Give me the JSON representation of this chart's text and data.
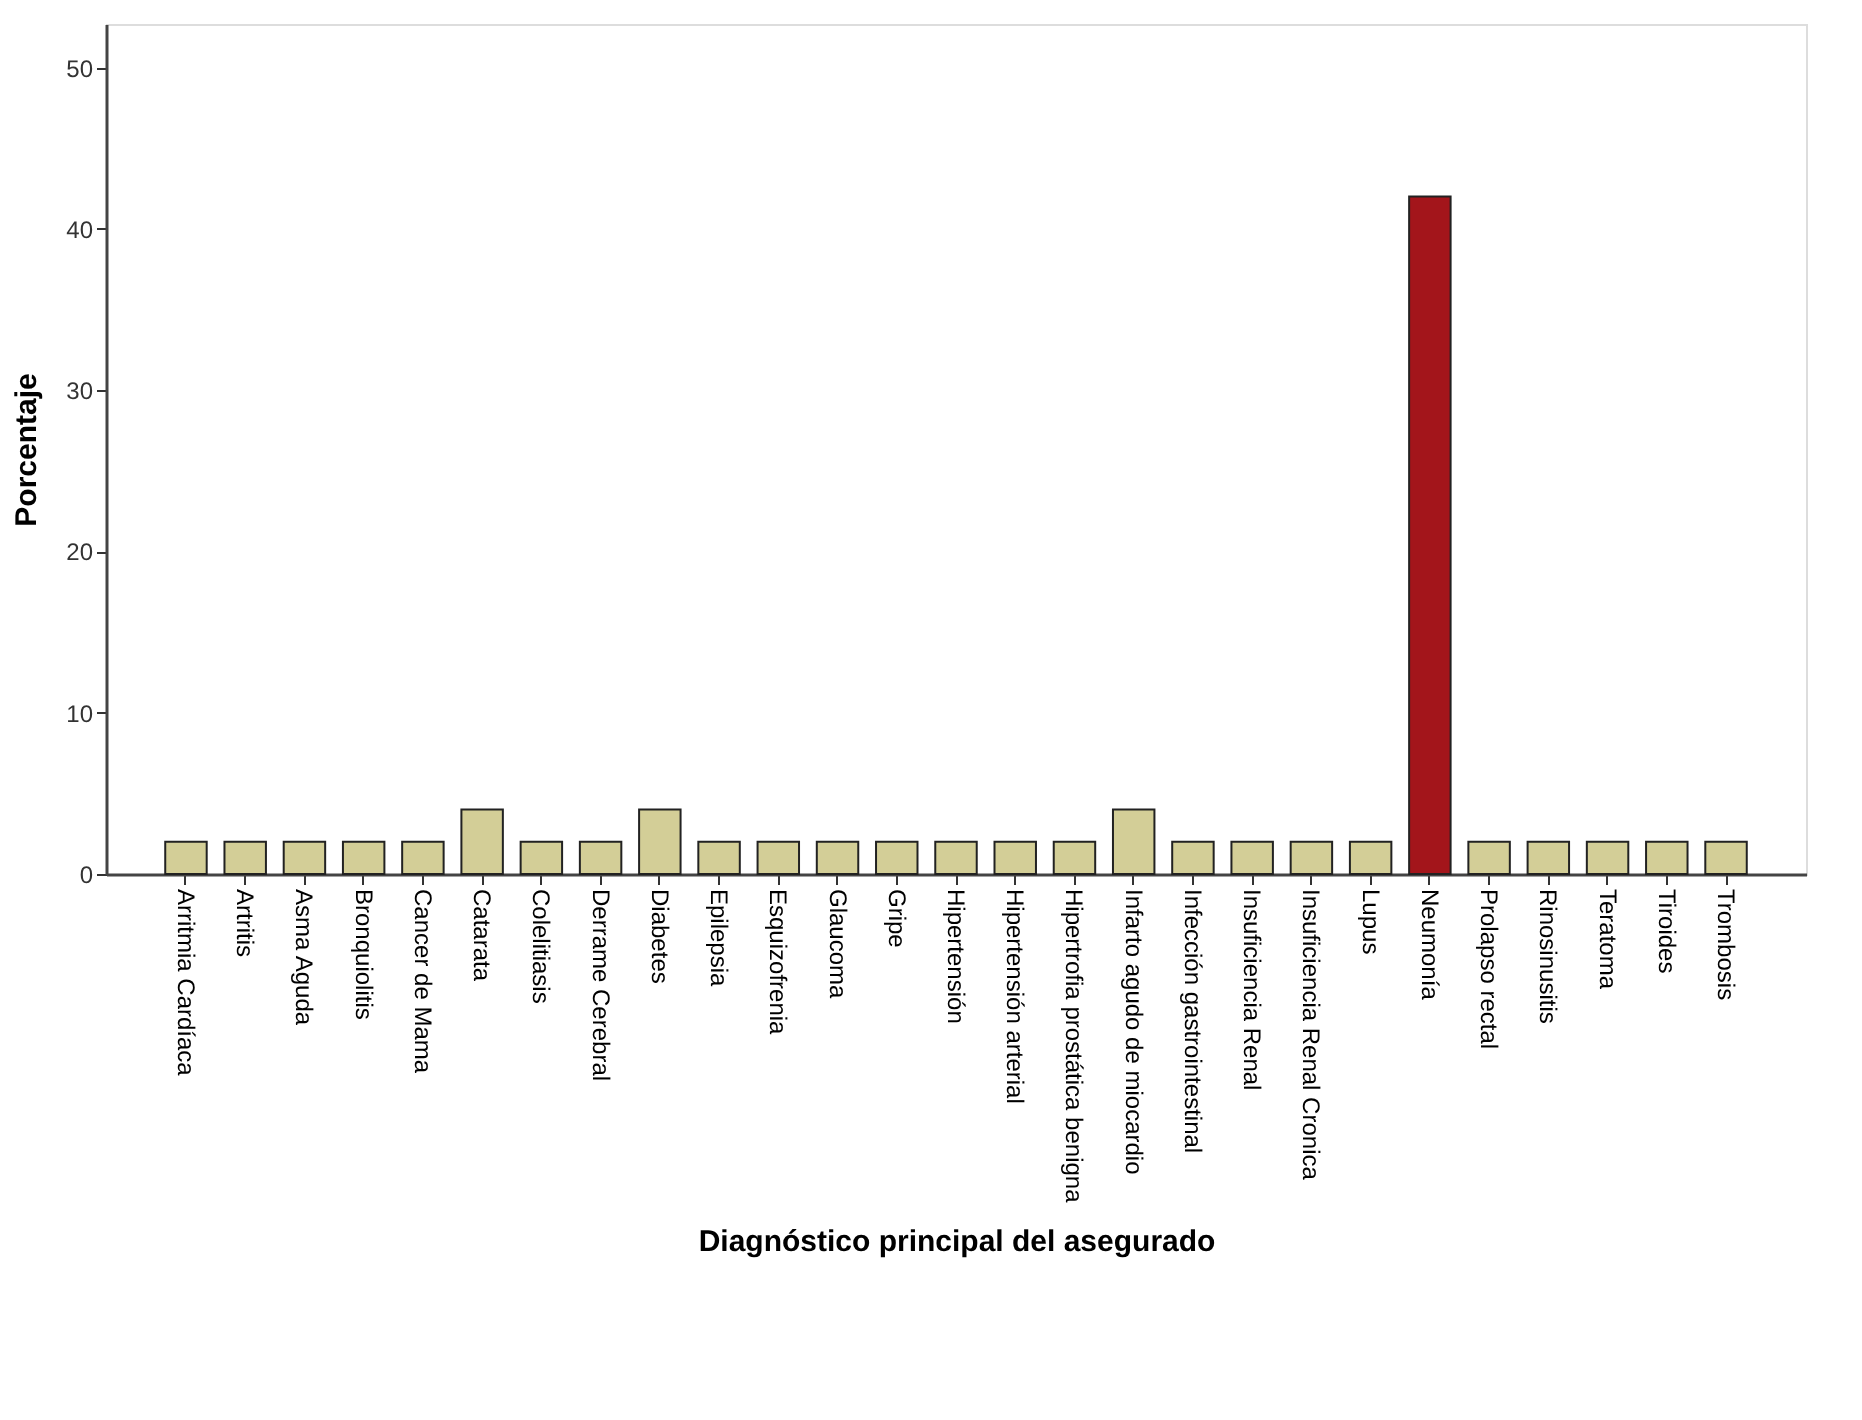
{
  "chart_data": {
    "type": "bar",
    "xlabel": "Diagnóstico principal del asegurado",
    "ylabel": "Porcentaje",
    "categories": [
      "Arritmia Cardíaca",
      "Artritis",
      "Asma Aguda",
      "Bronquiolitis",
      "Cancer de Mama",
      "Catarata",
      "Colelitiasis",
      "Derrame Cerebral",
      "Diabetes",
      "Epilepsia",
      "Esquizofrenia",
      "Glaucoma",
      "Gripe",
      "Hipertensión",
      "Hipertensión arterial",
      "Hipertrofia prostática benigna",
      "Infarto agudo de miocardio",
      "Infección gastrointestinal",
      "Insuficiencia Renal",
      "Insuficiencia Renal Cronica",
      "Lupus",
      "Neumonía",
      "Prolapso rectal",
      "Rinosinusitis",
      "Teratoma",
      "Tiroides",
      "Trombosis"
    ],
    "values": [
      2,
      2,
      2,
      2,
      2,
      4,
      2,
      2,
      4,
      2,
      2,
      2,
      2,
      2,
      2,
      2,
      4,
      2,
      2,
      2,
      2,
      42,
      2,
      2,
      2,
      2,
      2
    ],
    "colors": [
      "#d3ce97",
      "#d3ce97",
      "#d3ce97",
      "#d3ce97",
      "#d3ce97",
      "#d3ce97",
      "#d3ce97",
      "#d3ce97",
      "#d3ce97",
      "#d3ce97",
      "#d3ce97",
      "#d3ce97",
      "#d3ce97",
      "#d3ce97",
      "#d3ce97",
      "#d3ce97",
      "#d3ce97",
      "#d3ce97",
      "#d3ce97",
      "#d3ce97",
      "#d3ce97",
      "#a3151b",
      "#d3ce97",
      "#d3ce97",
      "#d3ce97",
      "#d3ce97",
      "#d3ce97"
    ],
    "ylim": [
      0,
      52.7
    ],
    "yticks": [
      0,
      10,
      20,
      30,
      40,
      50
    ],
    "grid": false
  }
}
